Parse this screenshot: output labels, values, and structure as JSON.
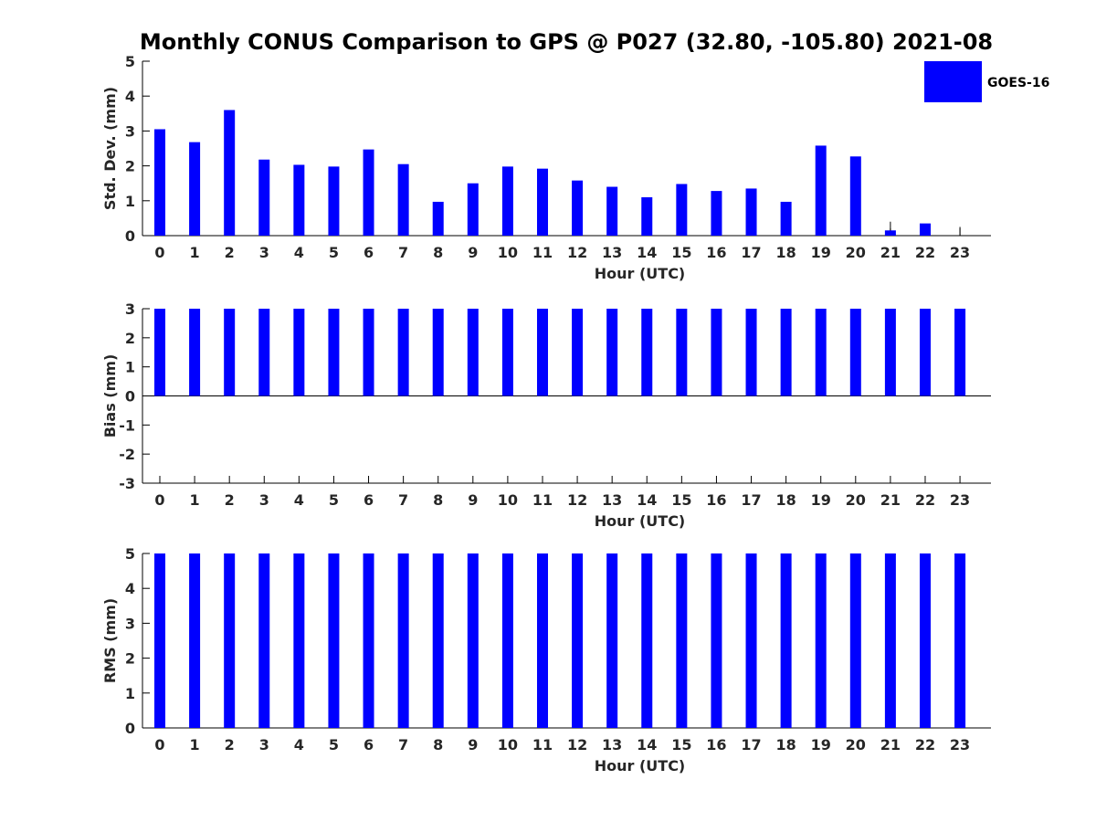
{
  "title": "Monthly CONUS Comparison to GPS @ P027 (32.80, -105.80) 2021-08",
  "legend": {
    "label": "GOES-16",
    "color": "#0000ff",
    "placement": "top-right"
  },
  "chart_data": [
    {
      "type": "bar",
      "xlabel": "Hour (UTC)",
      "ylabel": "Std. Dev. (mm)",
      "ylim": [
        0,
        5
      ],
      "yticks": [
        0,
        1,
        2,
        3,
        4,
        5
      ],
      "categories": [
        "0",
        "1",
        "2",
        "3",
        "4",
        "5",
        "6",
        "7",
        "8",
        "9",
        "10",
        "11",
        "12",
        "13",
        "14",
        "15",
        "16",
        "17",
        "18",
        "19",
        "20",
        "21",
        "22",
        "23"
      ],
      "series": [
        {
          "name": "GOES-16",
          "color": "#0000ff",
          "values": [
            3.05,
            2.68,
            3.6,
            2.18,
            2.03,
            1.98,
            2.47,
            2.05,
            0.97,
            1.5,
            1.98,
            1.92,
            1.58,
            1.4,
            1.1,
            1.48,
            1.28,
            1.35,
            0.97,
            2.58,
            2.27,
            0.15,
            0.35,
            0
          ]
        }
      ],
      "error_bars": [
        0,
        0,
        0,
        0,
        0,
        0,
        0,
        0,
        0,
        0,
        0,
        0,
        0,
        0,
        0,
        0,
        0,
        0,
        0,
        0,
        0,
        0.25,
        0,
        0.25
      ],
      "grid": false
    },
    {
      "type": "bar",
      "xlabel": "Hour (UTC)",
      "ylabel": "Bias (mm)",
      "ylim": [
        -3,
        3
      ],
      "yticks": [
        -3,
        -2,
        -1,
        0,
        1,
        2,
        3
      ],
      "categories": [
        "0",
        "1",
        "2",
        "3",
        "4",
        "5",
        "6",
        "7",
        "8",
        "9",
        "10",
        "11",
        "12",
        "13",
        "14",
        "15",
        "16",
        "17",
        "18",
        "19",
        "20",
        "21",
        "22",
        "23"
      ],
      "series": [
        {
          "name": "GOES-16",
          "color": "#0000ff",
          "values": [
            3,
            3,
            3,
            3,
            3,
            3,
            3,
            3,
            3,
            3,
            3,
            3,
            3,
            3,
            3,
            3,
            3,
            3,
            3,
            3,
            3,
            3,
            3,
            3
          ]
        }
      ],
      "grid": false
    },
    {
      "type": "bar",
      "xlabel": "Hour (UTC)",
      "ylabel": "RMS (mm)",
      "ylim": [
        0,
        5
      ],
      "yticks": [
        0,
        1,
        2,
        3,
        4,
        5
      ],
      "categories": [
        "0",
        "1",
        "2",
        "3",
        "4",
        "5",
        "6",
        "7",
        "8",
        "9",
        "10",
        "11",
        "12",
        "13",
        "14",
        "15",
        "16",
        "17",
        "18",
        "19",
        "20",
        "21",
        "22",
        "23"
      ],
      "series": [
        {
          "name": "GOES-16",
          "color": "#0000ff",
          "values": [
            5,
            5,
            5,
            5,
            5,
            5,
            5,
            5,
            5,
            5,
            5,
            5,
            5,
            5,
            5,
            5,
            5,
            5,
            5,
            5,
            5,
            5,
            5,
            5
          ]
        }
      ],
      "grid": false
    }
  ]
}
